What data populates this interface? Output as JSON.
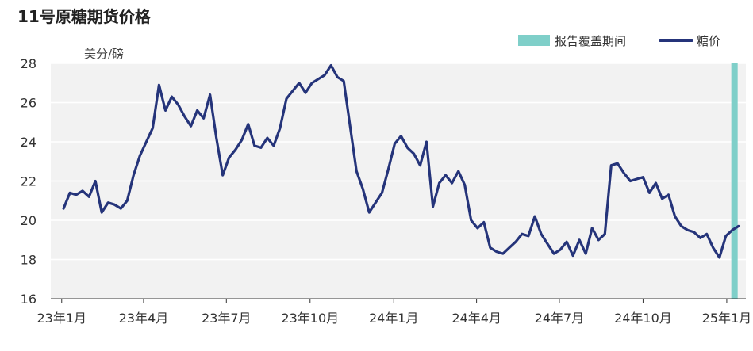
{
  "chart_data": {
    "type": "line",
    "title": "11号原糖期货价格",
    "unit_label": "美分/磅",
    "ylim": [
      16,
      28
    ],
    "yticks": [
      "16",
      "18",
      "20",
      "22",
      "24",
      "26",
      "28"
    ],
    "xticks": [
      "23年1月",
      "23年4月",
      "23年7月",
      "23年10月",
      "24年1月",
      "24年4月",
      "24年7月",
      "24年10月",
      "25年1月"
    ],
    "grid": true,
    "legend_position": "top-right",
    "colors": {
      "line": "#25347a",
      "highlight": "#7fcfc9",
      "plot_bg": "#f2f2f2"
    },
    "legend": [
      {
        "label": "报告覆盖期间",
        "kind": "band"
      },
      {
        "label": "糖价",
        "kind": "line"
      }
    ],
    "highlight_band": {
      "from": "2025-01-06",
      "to": "2025-01-13"
    },
    "series": [
      {
        "name": "糖价",
        "x": [
          "2023-01-03",
          "2023-01-10",
          "2023-01-17",
          "2023-01-24",
          "2023-01-31",
          "2023-02-07",
          "2023-02-14",
          "2023-02-21",
          "2023-02-28",
          "2023-03-07",
          "2023-03-14",
          "2023-03-21",
          "2023-03-28",
          "2023-04-04",
          "2023-04-11",
          "2023-04-18",
          "2023-04-25",
          "2023-05-02",
          "2023-05-09",
          "2023-05-16",
          "2023-05-23",
          "2023-05-30",
          "2023-06-06",
          "2023-06-13",
          "2023-06-20",
          "2023-06-27",
          "2023-07-04",
          "2023-07-11",
          "2023-07-18",
          "2023-07-25",
          "2023-08-01",
          "2023-08-08",
          "2023-08-15",
          "2023-08-22",
          "2023-08-29",
          "2023-09-05",
          "2023-09-12",
          "2023-09-19",
          "2023-09-26",
          "2023-10-03",
          "2023-10-10",
          "2023-10-17",
          "2023-10-24",
          "2023-10-31",
          "2023-11-07",
          "2023-11-14",
          "2023-11-21",
          "2023-11-28",
          "2023-12-05",
          "2023-12-12",
          "2023-12-19",
          "2023-12-26",
          "2024-01-02",
          "2024-01-09",
          "2024-01-16",
          "2024-01-23",
          "2024-01-30",
          "2024-02-06",
          "2024-02-13",
          "2024-02-20",
          "2024-02-27",
          "2024-03-05",
          "2024-03-12",
          "2024-03-19",
          "2024-03-26",
          "2024-04-02",
          "2024-04-09",
          "2024-04-16",
          "2024-04-23",
          "2024-04-30",
          "2024-05-07",
          "2024-05-14",
          "2024-05-21",
          "2024-05-28",
          "2024-06-04",
          "2024-06-11",
          "2024-06-18",
          "2024-06-25",
          "2024-07-02",
          "2024-07-09",
          "2024-07-16",
          "2024-07-23",
          "2024-07-30",
          "2024-08-06",
          "2024-08-13",
          "2024-08-20",
          "2024-08-27",
          "2024-09-03",
          "2024-09-10",
          "2024-09-17",
          "2024-09-24",
          "2024-10-01",
          "2024-10-08",
          "2024-10-15",
          "2024-10-22",
          "2024-10-29",
          "2024-11-05",
          "2024-11-12",
          "2024-11-19",
          "2024-11-26",
          "2024-12-03",
          "2024-12-10",
          "2024-12-17",
          "2024-12-24",
          "2024-12-31",
          "2025-01-07",
          "2025-01-14"
        ],
        "values": [
          20.6,
          21.4,
          21.3,
          21.5,
          21.2,
          22.0,
          20.4,
          20.9,
          20.8,
          20.6,
          21.0,
          22.3,
          23.3,
          24.0,
          24.7,
          26.9,
          25.6,
          26.3,
          25.9,
          25.3,
          24.8,
          25.6,
          25.2,
          26.4,
          24.2,
          22.3,
          23.2,
          23.6,
          24.1,
          24.9,
          23.8,
          23.7,
          24.2,
          23.8,
          24.7,
          26.2,
          26.6,
          27.0,
          26.5,
          27.0,
          27.2,
          27.4,
          27.9,
          27.3,
          27.1,
          24.8,
          22.5,
          21.6,
          20.4,
          20.9,
          21.4,
          22.6,
          23.9,
          24.3,
          23.7,
          23.4,
          22.8,
          24.0,
          20.7,
          21.9,
          22.3,
          21.9,
          22.5,
          21.8,
          20.0,
          19.6,
          19.9,
          18.6,
          18.4,
          18.3,
          18.6,
          18.9,
          19.3,
          19.2,
          20.2,
          19.3,
          18.8,
          18.3,
          18.5,
          18.9,
          18.2,
          19.0,
          18.3,
          19.6,
          19.0,
          19.3,
          22.8,
          22.9,
          22.4,
          22.0,
          22.1,
          22.2,
          21.4,
          21.9,
          21.1,
          21.3,
          20.2,
          19.7,
          19.5,
          19.4,
          19.1,
          19.3,
          18.6,
          18.1,
          19.2,
          19.5,
          19.7
        ]
      }
    ]
  }
}
